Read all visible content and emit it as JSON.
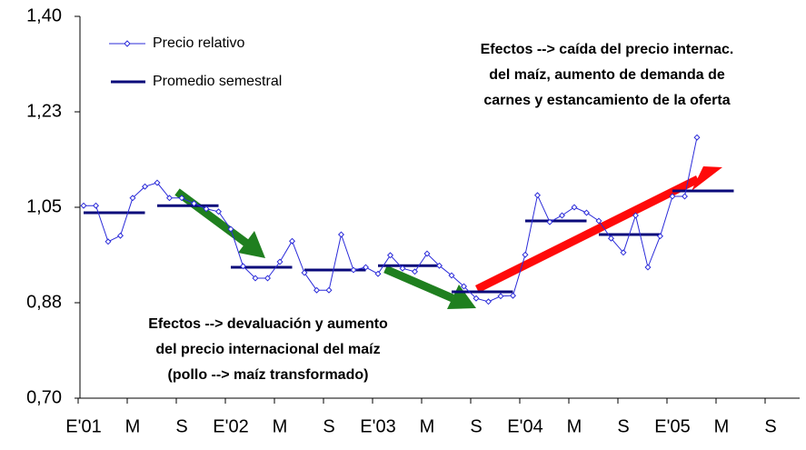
{
  "chart_data": {
    "type": "line",
    "categories": [
      "E'01",
      null,
      null,
      null,
      "M",
      null,
      null,
      null,
      "S",
      null,
      null,
      null,
      "E'02",
      null,
      null,
      null,
      "M",
      null,
      null,
      null,
      "S",
      null,
      null,
      null,
      "E'03",
      null,
      null,
      null,
      "M",
      null,
      null,
      null,
      "S",
      null,
      null,
      null,
      "E'04",
      null,
      null,
      null,
      "M",
      null,
      null,
      null,
      "S",
      null,
      null,
      null,
      "E'05",
      null,
      null,
      null,
      "M",
      null,
      null,
      null,
      "S",
      null,
      null
    ],
    "series": [
      {
        "name": "Precio relativo",
        "color": "#2b2bd9",
        "values": [
          1.053,
          1.053,
          0.987,
          0.998,
          1.067,
          1.088,
          1.095,
          1.067,
          1.067,
          1.057,
          1.047,
          1.042,
          1.01,
          0.942,
          0.92,
          0.92,
          0.95,
          0.988,
          0.93,
          0.898,
          0.898,
          1.0,
          0.935,
          0.94,
          0.928,
          0.962,
          0.938,
          0.932,
          0.965,
          0.943,
          0.925,
          0.905,
          0.883,
          0.877,
          0.887,
          0.888,
          0.963,
          1.072,
          1.023,
          1.035,
          1.05,
          1.04,
          1.025,
          0.993,
          0.967,
          1.035,
          0.94,
          0.997,
          1.07,
          1.07,
          1.178,
          null,
          null,
          null,
          null,
          null,
          null,
          null,
          null
        ]
      }
    ],
    "semester_averages": {
      "name": "Promedio semestral",
      "color": "#0a0a7a",
      "months_per_value": 6,
      "values": [
        1.04,
        1.053,
        0.94,
        0.935,
        0.943,
        0.895,
        1.025,
        1.0,
        1.08
      ]
    },
    "ylim": [
      0.7,
      1.4
    ],
    "yticks": [
      {
        "value": 0.7,
        "label": "0,70"
      },
      {
        "value": 0.875,
        "label": "0,88"
      },
      {
        "value": 1.05,
        "label": "1,05"
      },
      {
        "value": 1.225,
        "label": "1,23"
      },
      {
        "value": 1.4,
        "label": "1,40"
      }
    ],
    "legend": "top-left",
    "annotations": [
      [
        "Efectos --> caída del precio internac.",
        "del maíz, aumento de demanda de",
        "carnes y estancamiento de la oferta"
      ],
      [
        "Efectos --> devaluación y aumento",
        "del precio internacional del maíz",
        "(pollo --> maíz transformado)"
      ]
    ]
  }
}
